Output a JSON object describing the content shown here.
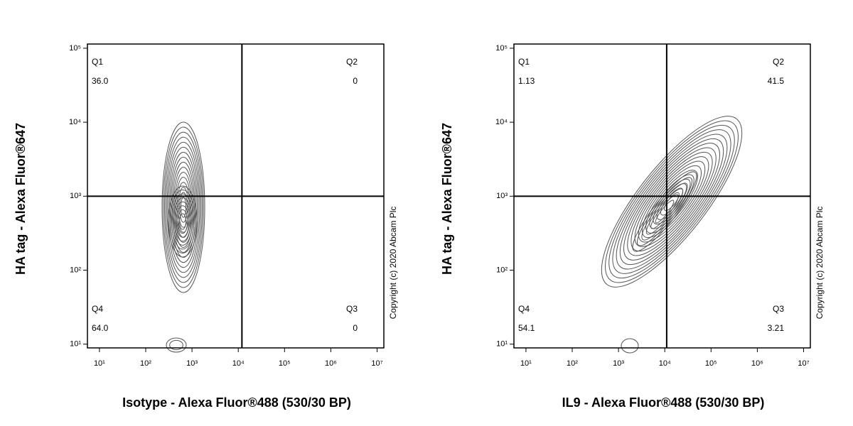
{
  "chart_data": [
    {
      "type": "contour",
      "x_label": "Isotype - Alexa Fluor®488 (530/30 BP)",
      "y_label": "HA tag - Alexa Fluor®647",
      "copyright": "Copyright (c) 2020 Abcam Plc",
      "log_x": true,
      "log_y": true,
      "xlim": [
        5.5,
        14000000
      ],
      "ylim": [
        8.9,
        114000
      ],
      "xticks": [
        {
          "value": 10,
          "label": "10¹"
        },
        {
          "value": 100,
          "label": "10²"
        },
        {
          "value": 1000,
          "label": "10³"
        },
        {
          "value": 10000,
          "label": "10⁴"
        },
        {
          "value": 100000,
          "label": "10⁵"
        },
        {
          "value": 1000000,
          "label": "10⁶"
        },
        {
          "value": 10000000,
          "label": "10⁷"
        }
      ],
      "yticks": [
        {
          "value": 10,
          "label": "10¹"
        },
        {
          "value": 100,
          "label": "10²"
        },
        {
          "value": 1000,
          "label": "10³"
        },
        {
          "value": 10000,
          "label": "10⁴"
        },
        {
          "value": 100000,
          "label": "10⁵"
        }
      ],
      "gate": {
        "x": 12000,
        "y": 1000
      },
      "quadrant_names": [
        "Q1",
        "Q2",
        "Q3",
        "Q4"
      ],
      "values": [
        36.0,
        0,
        0,
        64.0
      ],
      "value_labels": [
        "36.0",
        "0",
        "0",
        "64.0"
      ],
      "color": "#555555"
    },
    {
      "type": "contour",
      "x_label": "IL9 - Alexa Fluor®488 (530/30 BP)",
      "y_label": "HA tag - Alexa Fluor®647",
      "copyright": "Copyright (c) 2020 Abcam Plc",
      "log_x": true,
      "log_y": true,
      "xlim": [
        5.5,
        14000000
      ],
      "ylim": [
        8.9,
        114000
      ],
      "xticks": [
        {
          "value": 10,
          "label": "10¹"
        },
        {
          "value": 100,
          "label": "10²"
        },
        {
          "value": 1000,
          "label": "10³"
        },
        {
          "value": 10000,
          "label": "10⁴"
        },
        {
          "value": 100000,
          "label": "10⁵"
        },
        {
          "value": 1000000,
          "label": "10⁶"
        },
        {
          "value": 10000000,
          "label": "10⁷"
        }
      ],
      "yticks": [
        {
          "value": 10,
          "label": "10¹"
        },
        {
          "value": 100,
          "label": "10²"
        },
        {
          "value": 1000,
          "label": "10³"
        },
        {
          "value": 10000,
          "label": "10⁴"
        },
        {
          "value": 100000,
          "label": "10⁵"
        }
      ],
      "gate": {
        "x": 11000,
        "y": 1000
      },
      "quadrant_names": [
        "Q1",
        "Q2",
        "Q3",
        "Q4"
      ],
      "values": [
        1.13,
        41.5,
        3.21,
        54.1
      ],
      "value_labels": [
        "1.13",
        "41.5",
        "3.21",
        "54.1"
      ],
      "color": "#555555"
    }
  ]
}
